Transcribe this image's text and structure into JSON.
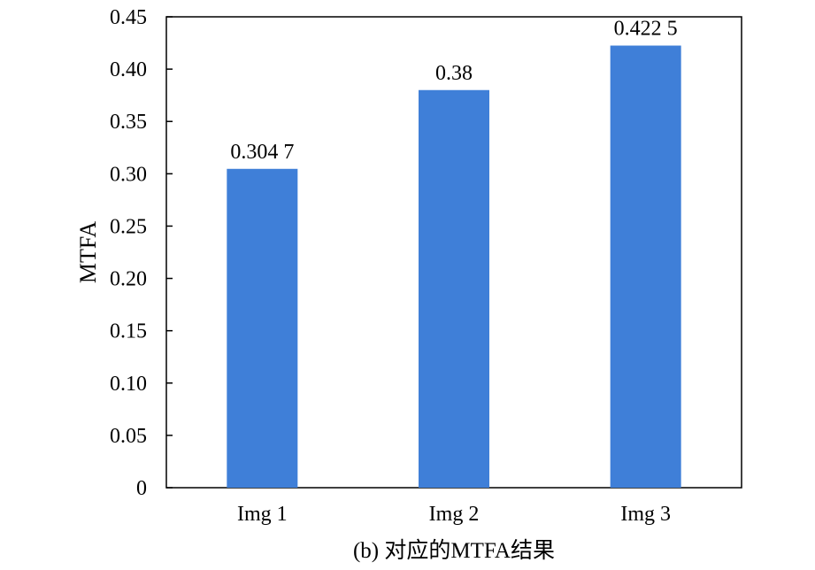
{
  "chart_data": {
    "type": "bar",
    "categories": [
      "Img 1",
      "Img 2",
      "Img 3"
    ],
    "values": [
      0.3047,
      0.38,
      0.4225
    ],
    "data_labels": [
      "0.304 7",
      "0.38",
      "0.422 5"
    ],
    "title": "",
    "xlabel": "",
    "ylabel": "MTFA",
    "ylim": [
      0,
      0.45
    ],
    "yticks": [
      0,
      0.05,
      0.1,
      0.15,
      0.2,
      0.25,
      0.3,
      0.35,
      0.4,
      0.45
    ],
    "ytick_labels": [
      "0",
      "0.05",
      "0.10",
      "0.15",
      "0.20",
      "0.25",
      "0.30",
      "0.35",
      "0.40",
      "0.45"
    ],
    "grid": false,
    "legend": "none",
    "bar_color": "#3f7fd8"
  },
  "caption": "(b) 对应的MTFA结果"
}
